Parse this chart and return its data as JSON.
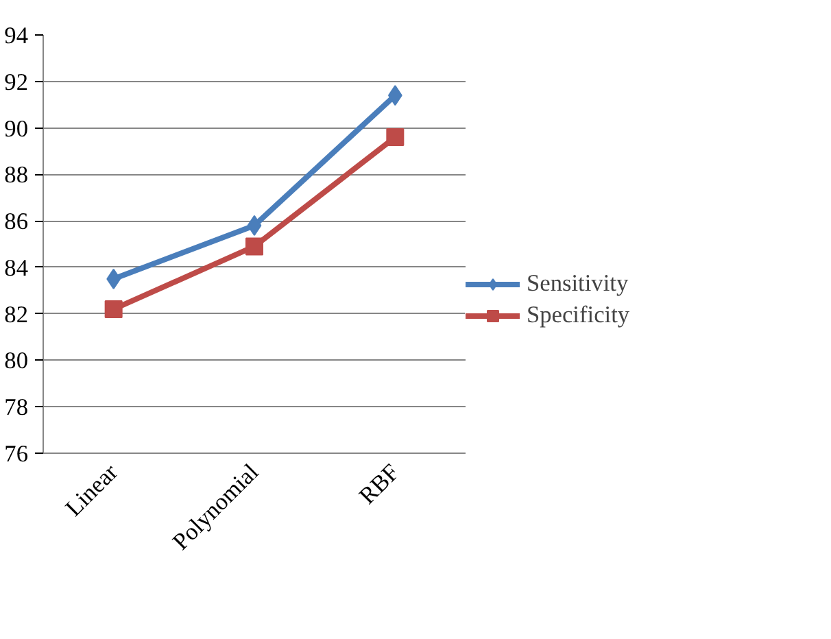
{
  "chart_data": {
    "type": "line",
    "categories": [
      "Linear",
      "Polynomial",
      "RBF"
    ],
    "series": [
      {
        "name": "Sensitivity",
        "color": "#4a7ebb",
        "values": [
          83.5,
          85.8,
          91.4
        ],
        "marker": "diamond"
      },
      {
        "name": "Specificity",
        "color": "#be4b48",
        "values": [
          82.2,
          84.9,
          89.6
        ],
        "marker": "square"
      }
    ],
    "ylim": [
      76,
      94
    ],
    "yticks": [
      76,
      78,
      80,
      82,
      84,
      86,
      88,
      90,
      92,
      94
    ],
    "grid": "y",
    "legend": "right"
  }
}
